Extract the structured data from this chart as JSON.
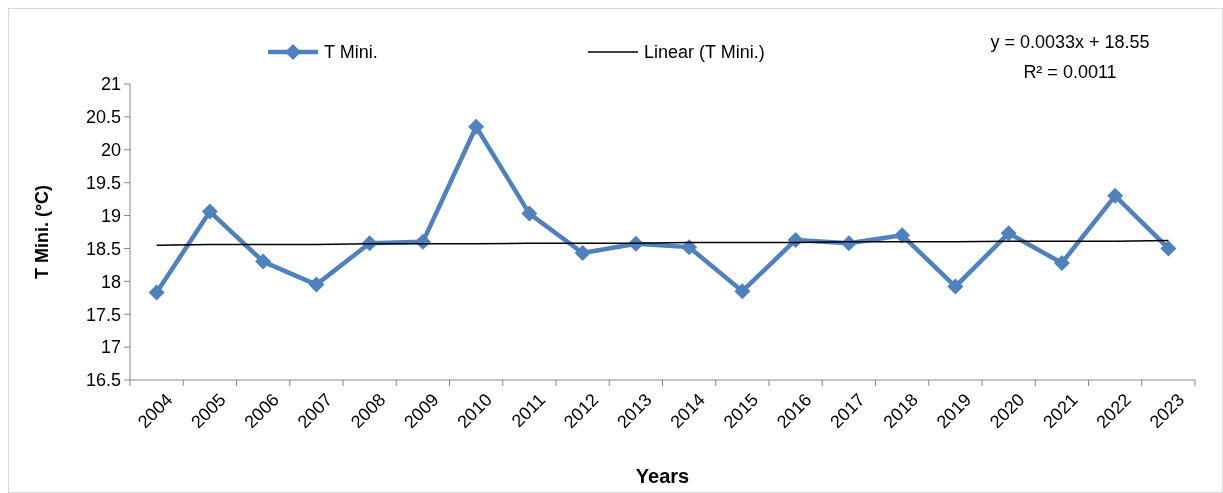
{
  "chart_data": {
    "type": "line",
    "xlabel": "Years",
    "ylabel": "T Mini. (°C)",
    "categories": [
      "2004",
      "2005",
      "2006",
      "2007",
      "2008",
      "2009",
      "2010",
      "2011",
      "2012",
      "2013",
      "2014",
      "2015",
      "2016",
      "2017",
      "2018",
      "2019",
      "2020",
      "2021",
      "2022",
      "2023"
    ],
    "series": [
      {
        "name": "T Mini.",
        "color": "#4f81bd",
        "marker": "diamond",
        "values": [
          17.83,
          19.06,
          18.3,
          17.95,
          18.58,
          18.6,
          20.35,
          19.03,
          18.43,
          18.57,
          18.52,
          17.85,
          18.63,
          18.58,
          18.7,
          17.92,
          18.73,
          18.28,
          19.3,
          18.5
        ]
      },
      {
        "name": "Linear (T Mini.)",
        "color": "#000000",
        "marker": "none",
        "values": [
          18.55,
          18.56,
          18.56,
          18.56,
          18.57,
          18.57,
          18.57,
          18.58,
          18.58,
          18.58,
          18.59,
          18.59,
          18.59,
          18.6,
          18.6,
          18.6,
          18.61,
          18.61,
          18.61,
          18.62
        ]
      }
    ],
    "ylim": [
      16.5,
      21
    ],
    "yticks": [
      16.5,
      17,
      17.5,
      18,
      18.5,
      19,
      19.5,
      20,
      20.5,
      21
    ],
    "legend": "top",
    "grid": false,
    "annotations": [
      "y = 0.0033x + 18.55",
      "R² = 0.0011"
    ]
  }
}
